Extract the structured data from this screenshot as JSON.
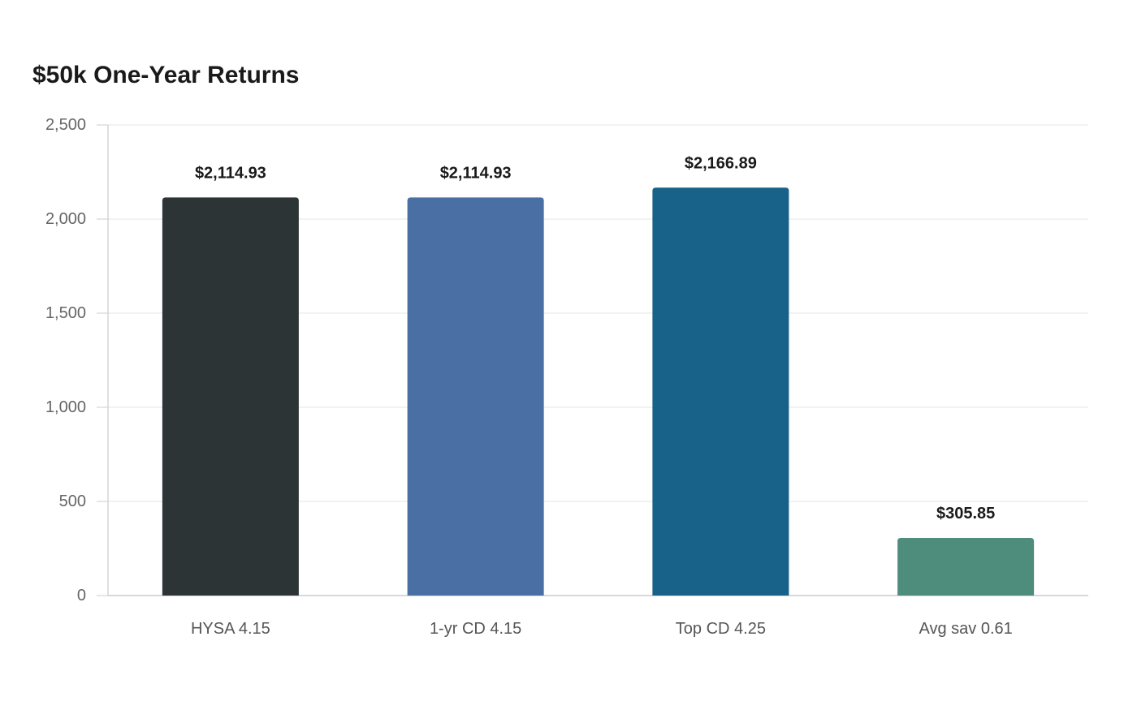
{
  "chart_data": {
    "type": "bar",
    "title": "$50k One-Year Returns",
    "xlabel": "",
    "ylabel": "",
    "categories": [
      "HYSA 4.15",
      "1-yr CD 4.15",
      "Top CD 4.25",
      "Avg sav 0.61"
    ],
    "values": [
      2114.93,
      2114.93,
      2166.89,
      305.85
    ],
    "value_labels": [
      "$2,114.93",
      "$2,114.93",
      "$2,166.89",
      "$305.85"
    ],
    "colors": [
      "#2d3436",
      "#4a6fa5",
      "#186289",
      "#4e8d7b"
    ],
    "ylim": [
      0,
      2500
    ],
    "yticks": [
      0,
      500,
      1000,
      1500,
      2000,
      2500
    ],
    "ytick_labels": [
      "0",
      "500",
      "1,000",
      "1,500",
      "2,000",
      "2,500"
    ],
    "grid": true,
    "legend": "none"
  }
}
